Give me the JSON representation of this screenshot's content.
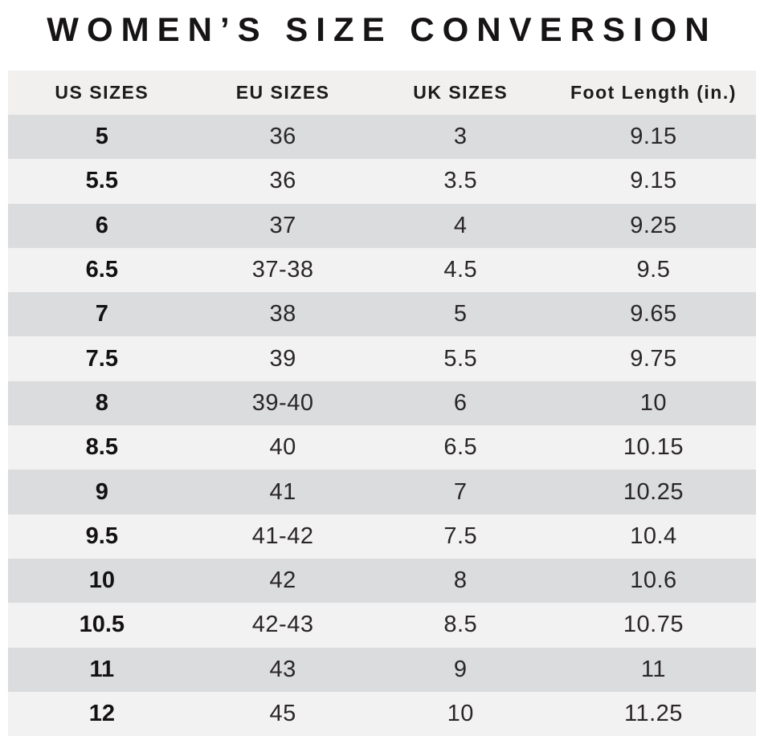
{
  "title": "WOMEN’S SIZE CONVERSION",
  "table": {
    "headers": [
      "US SIZES",
      "EU SIZES",
      "UK SIZES",
      "Foot Length (in.)"
    ],
    "rows": [
      [
        "5",
        "36",
        "3",
        "9.15"
      ],
      [
        "5.5",
        "36",
        "3.5",
        "9.15"
      ],
      [
        "6",
        "37",
        "4",
        "9.25"
      ],
      [
        "6.5",
        "37-38",
        "4.5",
        "9.5"
      ],
      [
        "7",
        "38",
        "5",
        "9.65"
      ],
      [
        "7.5",
        "39",
        "5.5",
        "9.75"
      ],
      [
        "8",
        "39-40",
        "6",
        "10"
      ],
      [
        "8.5",
        "40",
        "6.5",
        "10.15"
      ],
      [
        "9",
        "41",
        "7",
        "10.25"
      ],
      [
        "9.5",
        "41-42",
        "7.5",
        "10.4"
      ],
      [
        "10",
        "42",
        "8",
        "10.6"
      ],
      [
        "10.5",
        "42-43",
        "8.5",
        "10.75"
      ],
      [
        "11",
        "43",
        "9",
        "11"
      ],
      [
        "12",
        "45",
        "10",
        "11.25"
      ]
    ],
    "colors": {
      "row_dark": "#dbdcde",
      "row_light": "#f3f2f2",
      "header_bg": "#f1f0ee",
      "text": "#2a2627"
    }
  }
}
